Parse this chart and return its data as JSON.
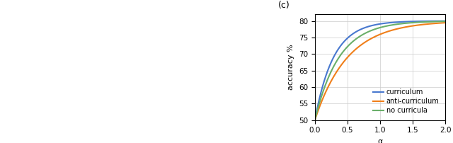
{
  "title": "(c)",
  "xlabel": "α",
  "ylabel": "accuracy %",
  "xlim": [
    0,
    2.0
  ],
  "ylim": [
    50,
    82
  ],
  "yticks": [
    50,
    55,
    60,
    65,
    70,
    75,
    80
  ],
  "xticks": [
    0.0,
    0.5,
    1.0,
    1.5,
    2.0
  ],
  "curve_curriculum_color": "#4878cf",
  "curve_anticurriculum_color": "#f07f1a",
  "curve_nocurricula_color": "#6aaf6a",
  "legend_labels": [
    "curriculum",
    "anti-curriculum",
    "no curricula"
  ],
  "background_color": "#ffffff",
  "grid_color": "#cccccc",
  "linewidth": 1.5,
  "figsize": [
    6.4,
    2.02
  ],
  "dpi": 100,
  "max_acc": 80.0,
  "min_acc": 50.0,
  "curriculum_k": 3.5,
  "anticurriculum_k": 2.0,
  "nocurricula_k": 2.7
}
